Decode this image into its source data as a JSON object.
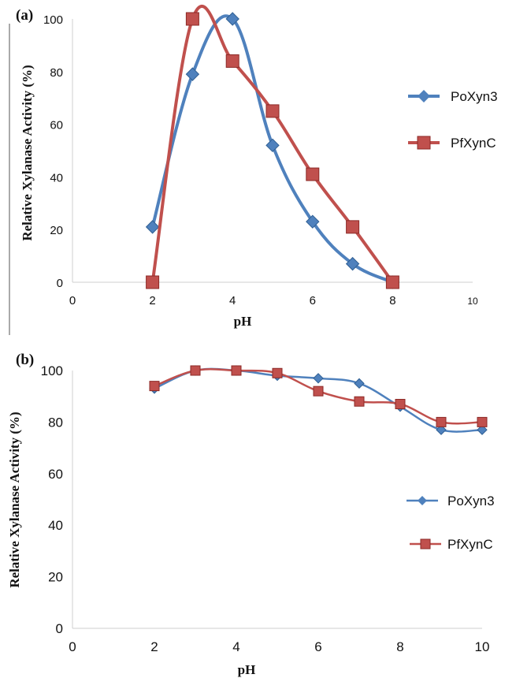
{
  "chart_data": [
    {
      "panel_label": "(a)",
      "type": "line",
      "xlabel": "pH",
      "ylabel": "Relative Xylanase Activity (%)",
      "xlim": [
        0,
        10
      ],
      "ylim": [
        0,
        100
      ],
      "xticks": [
        0,
        2,
        4,
        6,
        8,
        10
      ],
      "yticks": [
        0,
        20,
        40,
        60,
        80,
        100
      ],
      "grid": false,
      "legend_position": "right",
      "smooth": true,
      "series": [
        {
          "name": "PoXyn3",
          "color": "#4f81bd",
          "marker": "diamond",
          "x": [
            2,
            3,
            4,
            5,
            6,
            7,
            8
          ],
          "y": [
            21,
            79,
            100,
            52,
            23,
            7,
            0
          ]
        },
        {
          "name": "PfXynC",
          "color": "#c0504d",
          "marker": "square",
          "x": [
            2,
            3,
            4,
            5,
            6,
            7,
            8
          ],
          "y": [
            0,
            100,
            84,
            65,
            41,
            21,
            0
          ]
        }
      ]
    },
    {
      "panel_label": "(b)",
      "type": "line",
      "xlabel": "pH",
      "ylabel": "Relative Xylanase Activity (%)",
      "xlim": [
        0,
        10
      ],
      "ylim": [
        0,
        100
      ],
      "xticks": [
        0,
        2,
        4,
        6,
        8,
        10
      ],
      "yticks": [
        0,
        20,
        40,
        60,
        80,
        100
      ],
      "grid": false,
      "legend_position": "right",
      "smooth": true,
      "series": [
        {
          "name": "PoXyn3",
          "color": "#4f81bd",
          "marker": "diamond",
          "x": [
            2,
            3,
            4,
            5,
            6,
            7,
            8,
            9,
            10
          ],
          "y": [
            93,
            100,
            100,
            98,
            97,
            95,
            86,
            77,
            77
          ]
        },
        {
          "name": "PfXynC",
          "color": "#c0504d",
          "marker": "square",
          "x": [
            2,
            3,
            4,
            5,
            6,
            7,
            8,
            9,
            10
          ],
          "y": [
            94,
            100,
            100,
            99,
            92,
            88,
            87,
            80,
            80
          ]
        }
      ]
    }
  ]
}
